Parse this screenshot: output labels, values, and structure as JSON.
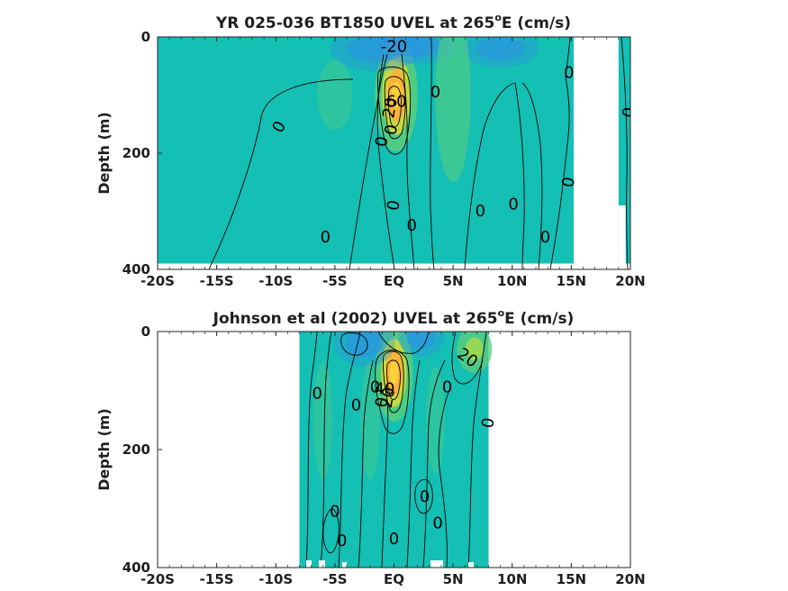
{
  "chart_data": [
    {
      "type": "heatmap",
      "title_main": "YR 025-036 BT1850 UVEL at 265",
      "title_sup": "o",
      "title_tail": "E (cm/s)",
      "ylabel": "Depth (m)",
      "xlim": [
        -20,
        20
      ],
      "ylim": [
        400,
        0
      ],
      "x_ticks": [
        {
          "value": -20,
          "label": "-20S"
        },
        {
          "value": -15,
          "label": "-15S"
        },
        {
          "value": -10,
          "label": "-10S"
        },
        {
          "value": -5,
          "label": "-5S"
        },
        {
          "value": 0,
          "label": "EQ"
        },
        {
          "value": 5,
          "label": "5N"
        },
        {
          "value": 10,
          "label": "10N"
        },
        {
          "value": 15,
          "label": "15N"
        },
        {
          "value": 20,
          "label": "20N"
        }
      ],
      "y_ticks": [
        {
          "value": 0,
          "label": "0"
        },
        {
          "value": 200,
          "label": "200"
        },
        {
          "value": 400,
          "label": "400"
        }
      ],
      "colors": {
        "background": "#14bfb4",
        "low": "#2d8fe6",
        "mid": "#5dcf7a",
        "high": "#fbb43a",
        "peak": "#f7d23a"
      },
      "data_extent": {
        "lat_min": -20,
        "lat_max": 20,
        "depth_max": 390
      },
      "missing_regions": [
        {
          "lat": [
            15.2,
            19.0
          ],
          "depth": [
            0,
            400
          ]
        },
        {
          "lat": [
            19.0,
            19.6
          ],
          "depth": [
            290,
            400
          ]
        }
      ],
      "features": [
        {
          "kind": "max",
          "lat": 0.2,
          "depth": 100,
          "value": 60,
          "rx": 1.0,
          "ry": 65
        },
        {
          "kind": "min",
          "lat": -1.5,
          "depth": 20,
          "value": -20,
          "rx": 3.0,
          "ry": 30
        },
        {
          "kind": "min",
          "lat": 2.0,
          "depth": 15,
          "value": -15,
          "rx": 2.5,
          "ry": 25
        },
        {
          "kind": "min",
          "lat": 9.0,
          "depth": 20,
          "value": -10,
          "rx": 2.5,
          "ry": 25
        },
        {
          "kind": "max",
          "lat": 5.0,
          "depth": 100,
          "value": 15,
          "rx": 1.5,
          "ry": 150
        },
        {
          "kind": "max",
          "lat": -5.0,
          "depth": 100,
          "value": 8,
          "rx": 1.5,
          "ry": 60
        }
      ],
      "contour_labels": [
        {
          "text": "-20",
          "lat": 0.0,
          "depth": 17,
          "rot": 0
        },
        {
          "text": "60",
          "lat": 0.2,
          "depth": 112,
          "rot": 0
        },
        {
          "text": "20",
          "lat": -0.3,
          "depth": 122,
          "rot": -80
        },
        {
          "text": "0",
          "lat": -9.7,
          "depth": 155,
          "rot": -60
        },
        {
          "text": "0",
          "lat": -5.8,
          "depth": 345,
          "rot": 0
        },
        {
          "text": "0",
          "lat": -1.0,
          "depth": 180,
          "rot": -80
        },
        {
          "text": "0",
          "lat": -0.2,
          "depth": 160,
          "rot": -80
        },
        {
          "text": "0",
          "lat": 0.0,
          "depth": 290,
          "rot": -80
        },
        {
          "text": "0",
          "lat": 1.5,
          "depth": 325,
          "rot": 0
        },
        {
          "text": "0",
          "lat": 3.5,
          "depth": 95,
          "rot": 0
        },
        {
          "text": "0",
          "lat": 7.3,
          "depth": 300,
          "rot": 0
        },
        {
          "text": "0",
          "lat": 10.1,
          "depth": 288,
          "rot": 0
        },
        {
          "text": "0",
          "lat": 12.8,
          "depth": 345,
          "rot": 0
        },
        {
          "text": "0",
          "lat": 14.8,
          "depth": 62,
          "rot": 0
        },
        {
          "text": "0",
          "lat": 14.8,
          "depth": 250,
          "rot": -80
        },
        {
          "text": "0",
          "lat": 19.9,
          "depth": 130,
          "rot": -80
        }
      ]
    },
    {
      "type": "heatmap",
      "title_main": "Johnson et al (2002) UVEL at 265",
      "title_sup": "o",
      "title_tail": "E (cm/s)",
      "ylabel": "Depth (m)",
      "xlim": [
        -20,
        20
      ],
      "ylim": [
        400,
        0
      ],
      "x_ticks": [
        {
          "value": -20,
          "label": "-20S"
        },
        {
          "value": -15,
          "label": "-15S"
        },
        {
          "value": -10,
          "label": "-10S"
        },
        {
          "value": -5,
          "label": "-5S"
        },
        {
          "value": 0,
          "label": "EQ"
        },
        {
          "value": 5,
          "label": "5N"
        },
        {
          "value": 10,
          "label": "10N"
        },
        {
          "value": 15,
          "label": "15N"
        },
        {
          "value": 20,
          "label": "20N"
        }
      ],
      "y_ticks": [
        {
          "value": 0,
          "label": "0"
        },
        {
          "value": 200,
          "label": "200"
        },
        {
          "value": 400,
          "label": "400"
        }
      ],
      "colors": {
        "background": "#14bfb4",
        "low": "#2d8fe6",
        "mid": "#5dcf7a",
        "high": "#fbb43a",
        "peak": "#f7d23a"
      },
      "data_extent": {
        "lat_min": -8,
        "lat_max": 8,
        "depth_max": 400
      },
      "missing_regions": [],
      "features": [
        {
          "kind": "max",
          "lat": 0.0,
          "depth": 70,
          "value": 60,
          "rx": 0.9,
          "ry": 55
        },
        {
          "kind": "min",
          "lat": -2.5,
          "depth": 20,
          "value": -25,
          "rx": 2.0,
          "ry": 30
        },
        {
          "kind": "min",
          "lat": 2.3,
          "depth": 10,
          "value": -20,
          "rx": 1.5,
          "ry": 25
        },
        {
          "kind": "max",
          "lat": 6.8,
          "depth": 30,
          "value": 30,
          "rx": 1.5,
          "ry": 40
        },
        {
          "kind": "max",
          "lat": 3.5,
          "depth": 150,
          "value": 8,
          "rx": 0.8,
          "ry": 90
        },
        {
          "kind": "max",
          "lat": -6.0,
          "depth": 150,
          "value": 8,
          "rx": 0.8,
          "ry": 100
        },
        {
          "kind": "max",
          "lat": -2.0,
          "depth": 150,
          "value": 8,
          "rx": 0.8,
          "ry": 100
        }
      ],
      "contour_labels": [
        {
          "text": "20",
          "lat": 6.2,
          "depth": 45,
          "rot": 35
        },
        {
          "text": "40",
          "lat": -0.8,
          "depth": 98,
          "rot": 0
        },
        {
          "text": "20",
          "lat": -0.5,
          "depth": 112,
          "rot": -80
        },
        {
          "text": "0",
          "lat": -6.5,
          "depth": 105,
          "rot": 0
        },
        {
          "text": "0",
          "lat": -3.2,
          "depth": 125,
          "rot": 0
        },
        {
          "text": "0",
          "lat": -1.6,
          "depth": 95,
          "rot": 0
        },
        {
          "text": "0",
          "lat": -1.0,
          "depth": 120,
          "rot": -80
        },
        {
          "text": "0",
          "lat": 4.5,
          "depth": 95,
          "rot": 0
        },
        {
          "text": "0",
          "lat": 8.0,
          "depth": 155,
          "rot": -80
        },
        {
          "text": "0",
          "lat": -5.0,
          "depth": 305,
          "rot": 0
        },
        {
          "text": "0",
          "lat": -4.4,
          "depth": 355,
          "rot": 0
        },
        {
          "text": "0",
          "lat": 2.6,
          "depth": 280,
          "rot": 0
        },
        {
          "text": "0",
          "lat": 3.7,
          "depth": 325,
          "rot": 0
        },
        {
          "text": "0",
          "lat": 0.0,
          "depth": 352,
          "rot": 0
        }
      ]
    }
  ]
}
